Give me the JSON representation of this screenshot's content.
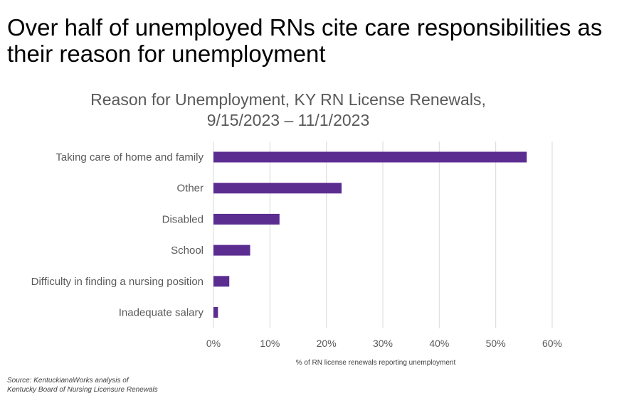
{
  "headline": "Over half of unemployed  RNs cite care responsibilities as their reason for unemployment",
  "colors": {
    "bar": "#5c2d91",
    "grid": "#d9d9d9",
    "text": "#595959"
  },
  "chart_data": {
    "type": "bar",
    "orientation": "horizontal",
    "title_line1": "Reason for Unemployment, KY RN License Renewals,",
    "title_line2": "9/15/2023 – 11/1/2023",
    "categories": [
      "Taking care of home and family",
      "Other",
      "Disabled",
      "School",
      "Difficulty in finding a nursing position",
      "Inadequate salary"
    ],
    "values": [
      55.5,
      22.7,
      11.7,
      6.5,
      2.8,
      0.8
    ],
    "xlabel": "% of RN license renewals reporting unemployment",
    "xlim": [
      0,
      60
    ],
    "xticks": [
      "0%",
      "10%",
      "20%",
      "30%",
      "40%",
      "50%",
      "60%"
    ],
    "grid": true,
    "legend": "none"
  },
  "source_line1": "Source: KentuckianaWorks analysis of",
  "source_line2": "Kentucky Board of Nursing Licensure Renewals"
}
